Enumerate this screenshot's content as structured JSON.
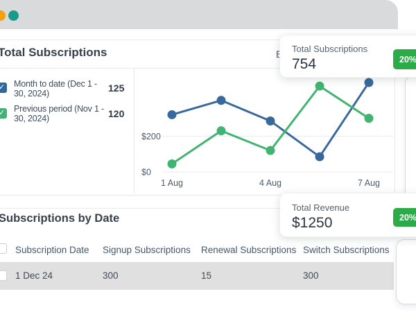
{
  "icons": {
    "check": "✓"
  },
  "window": {
    "dots": [
      {
        "name": "window-dot-orange",
        "color": "#f5a10d"
      },
      {
        "name": "window-dot-teal",
        "color": "#1a9a8a"
      }
    ]
  },
  "colors": {
    "badge_green": "#2dab49",
    "series_blue": "#39699c",
    "series_green": "#41b472",
    "row_highlight": "#e0e0e1"
  },
  "sections": {
    "subscriptions": {
      "title": "Total Subscriptions",
      "export_fragment": "E",
      "legend": [
        {
          "label": "Month to date (Dec 1 - 30, 2024)",
          "value": "125",
          "color": "#2c699f",
          "checked": true
        },
        {
          "label": "Previous period (Nov 1 - 30, 2024)",
          "value": "120",
          "color": "#44b275",
          "checked": true
        }
      ]
    },
    "by_date": {
      "title": "Subscriptions by Date",
      "table": {
        "columns": [
          "Subscription Date",
          "Signup Subscriptions",
          "Renewal Subscriptions",
          "Switch Subscriptions"
        ],
        "rows": [
          {
            "cells": [
              "1 Dec 24",
              "300",
              "15",
              "300"
            ],
            "selected": false
          }
        ]
      }
    }
  },
  "overlay_cards": [
    {
      "label": "Total Subscriptions",
      "value": "754",
      "badge": "20%"
    },
    {
      "label": "Total Revenue",
      "value": "$1250",
      "badge": "20%"
    }
  ],
  "chart_data": {
    "type": "line",
    "x_labels": [
      {
        "label": "1 Aug",
        "index": 0
      },
      {
        "label": "4 Aug",
        "index": 2
      },
      {
        "label": "7 Aug",
        "index": 4
      }
    ],
    "y_ticks": [
      {
        "label": "$200",
        "value": 200
      },
      {
        "label": "$0",
        "value": 0
      }
    ],
    "ylim": [
      0,
      560
    ],
    "grid": true,
    "legend_position": "left",
    "series": [
      {
        "name": "Month to date (Dec 1 - 30, 2024)",
        "color": "#39699c",
        "values": [
          320,
          400,
          285,
          85,
          500
        ]
      },
      {
        "name": "Previous period (Nov 1 - 30, 2024)",
        "color": "#41b472",
        "values": [
          45,
          230,
          120,
          480,
          300
        ]
      }
    ]
  }
}
